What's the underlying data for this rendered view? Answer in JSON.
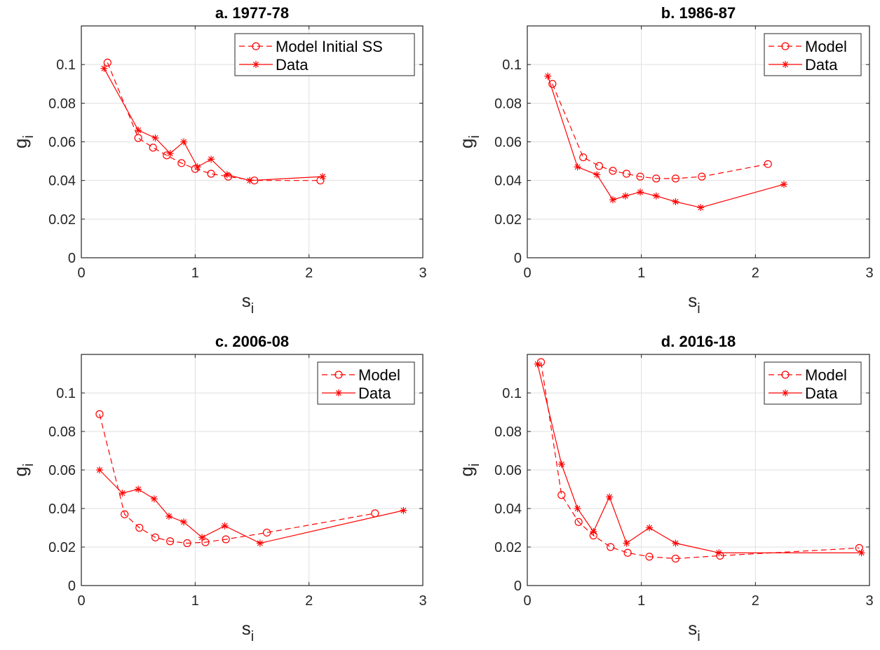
{
  "chart_data": [
    {
      "type": "line",
      "title": "a. 1977-78",
      "xlabel": "s",
      "xlabel_sub": "i",
      "ylabel": "g",
      "ylabel_sub": "i",
      "xlim": [
        0,
        3
      ],
      "ylim": [
        0,
        0.12
      ],
      "xticks": [
        0,
        1,
        2,
        3
      ],
      "xtick_labels": [
        "0",
        "1",
        "2",
        "3"
      ],
      "yticks": [
        0,
        0.02,
        0.04,
        0.06,
        0.08,
        0.1
      ],
      "ytick_labels": [
        "0",
        "0.02",
        "0.04",
        "0.06",
        "0.08",
        "0.1"
      ],
      "grid": true,
      "legend": "top-right",
      "series": [
        {
          "name": "Model Initial SS",
          "style": "dashed",
          "marker": "circle",
          "color": "#ff0000",
          "x": [
            0.23,
            0.5,
            0.63,
            0.75,
            0.88,
            1.0,
            1.14,
            1.29,
            1.52,
            2.1
          ],
          "y": [
            0.101,
            0.062,
            0.057,
            0.053,
            0.049,
            0.046,
            0.0435,
            0.042,
            0.04,
            0.04
          ]
        },
        {
          "name": "Data",
          "style": "solid",
          "marker": "star",
          "color": "#ff0000",
          "x": [
            0.2,
            0.5,
            0.65,
            0.78,
            0.9,
            1.02,
            1.14,
            1.28,
            1.48,
            2.12
          ],
          "y": [
            0.098,
            0.066,
            0.062,
            0.054,
            0.06,
            0.047,
            0.051,
            0.043,
            0.04,
            0.042
          ]
        }
      ]
    },
    {
      "type": "line",
      "title": "b. 1986-87",
      "xlabel": "s",
      "xlabel_sub": "i",
      "ylabel": "g",
      "ylabel_sub": "i",
      "xlim": [
        0,
        3
      ],
      "ylim": [
        0,
        0.12
      ],
      "xticks": [
        0,
        1,
        2,
        3
      ],
      "xtick_labels": [
        "0",
        "1",
        "2",
        "3"
      ],
      "yticks": [
        0,
        0.02,
        0.04,
        0.06,
        0.08,
        0.1
      ],
      "ytick_labels": [
        "0",
        "0.02",
        "0.04",
        "0.06",
        "0.08",
        "0.1"
      ],
      "grid": true,
      "legend": "top-right",
      "series": [
        {
          "name": "Model",
          "style": "dashed",
          "marker": "circle",
          "color": "#ff0000",
          "x": [
            0.22,
            0.49,
            0.63,
            0.75,
            0.87,
            0.99,
            1.13,
            1.3,
            1.53,
            2.11
          ],
          "y": [
            0.09,
            0.052,
            0.0475,
            0.045,
            0.0435,
            0.042,
            0.041,
            0.041,
            0.042,
            0.0485
          ]
        },
        {
          "name": "Data",
          "style": "solid",
          "marker": "star",
          "color": "#ff0000",
          "x": [
            0.18,
            0.44,
            0.61,
            0.75,
            0.86,
            0.99,
            1.13,
            1.3,
            1.52,
            2.25
          ],
          "y": [
            0.094,
            0.047,
            0.043,
            0.03,
            0.032,
            0.034,
            0.032,
            0.029,
            0.026,
            0.038
          ]
        }
      ]
    },
    {
      "type": "line",
      "title": "c. 2006-08",
      "xlabel": "s",
      "xlabel_sub": "i",
      "ylabel": "g",
      "ylabel_sub": "i",
      "xlim": [
        0,
        3
      ],
      "ylim": [
        0,
        0.12
      ],
      "xticks": [
        0,
        1,
        2,
        3
      ],
      "xtick_labels": [
        "0",
        "1",
        "2",
        "3"
      ],
      "yticks": [
        0,
        0.02,
        0.04,
        0.06,
        0.08,
        0.1
      ],
      "ytick_labels": [
        "0",
        "0.02",
        "0.04",
        "0.06",
        "0.08",
        "0.1"
      ],
      "grid": true,
      "legend": "top-right",
      "series": [
        {
          "name": "Model",
          "style": "dashed",
          "marker": "circle",
          "color": "#ff0000",
          "x": [
            0.16,
            0.38,
            0.51,
            0.65,
            0.78,
            0.93,
            1.09,
            1.27,
            1.63,
            2.58
          ],
          "y": [
            0.089,
            0.037,
            0.03,
            0.025,
            0.023,
            0.022,
            0.0225,
            0.024,
            0.0275,
            0.0375
          ]
        },
        {
          "name": "Data",
          "style": "solid",
          "marker": "star",
          "color": "#ff0000",
          "x": [
            0.16,
            0.36,
            0.5,
            0.64,
            0.77,
            0.9,
            1.06,
            1.26,
            1.57,
            2.83
          ],
          "y": [
            0.06,
            0.048,
            0.05,
            0.045,
            0.036,
            0.033,
            0.025,
            0.031,
            0.022,
            0.039
          ]
        }
      ]
    },
    {
      "type": "line",
      "title": "d. 2016-18",
      "xlabel": "s",
      "xlabel_sub": "i",
      "ylabel": "g",
      "ylabel_sub": "i",
      "xlim": [
        0,
        3
      ],
      "ylim": [
        0,
        0.12
      ],
      "xticks": [
        0,
        1,
        2,
        3
      ],
      "xtick_labels": [
        "0",
        "1",
        "2",
        "3"
      ],
      "yticks": [
        0,
        0.02,
        0.04,
        0.06,
        0.08,
        0.1
      ],
      "ytick_labels": [
        "0",
        "0.02",
        "0.04",
        "0.06",
        "0.08",
        "0.1"
      ],
      "grid": true,
      "legend": "top-right",
      "series": [
        {
          "name": "Model",
          "style": "dashed",
          "marker": "circle",
          "color": "#ff0000",
          "x": [
            0.12,
            0.3,
            0.45,
            0.58,
            0.73,
            0.88,
            1.07,
            1.3,
            1.69,
            2.91
          ],
          "y": [
            0.116,
            0.047,
            0.033,
            0.026,
            0.02,
            0.017,
            0.015,
            0.014,
            0.0155,
            0.0195
          ]
        },
        {
          "name": "Data",
          "style": "solid",
          "marker": "star",
          "color": "#ff0000",
          "x": [
            0.09,
            0.3,
            0.44,
            0.58,
            0.72,
            0.87,
            1.07,
            1.3,
            1.68,
            2.93
          ],
          "y": [
            0.115,
            0.063,
            0.04,
            0.028,
            0.046,
            0.022,
            0.03,
            0.022,
            0.017,
            0.017
          ]
        }
      ]
    }
  ]
}
